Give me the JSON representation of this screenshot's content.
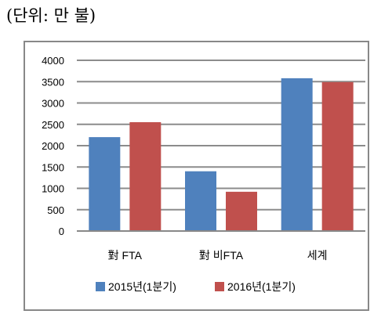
{
  "unit_label": "(단위: 만 불)",
  "chart_data": {
    "type": "bar",
    "categories": [
      "對 FTA",
      "對 비FTA",
      "세계"
    ],
    "series": [
      {
        "name": "2015년(1분기)",
        "values": [
          2200,
          1400,
          3580
        ],
        "color": "#4F81BD"
      },
      {
        "name": "2016년(1분기)",
        "values": [
          2550,
          920,
          3490
        ],
        "color": "#C0504D"
      }
    ],
    "ylim": [
      0,
      4000
    ],
    "yticks": [
      0,
      500,
      1000,
      1500,
      2000,
      2500,
      3000,
      3500,
      4000
    ],
    "grid": true,
    "legend_position": "bottom"
  }
}
